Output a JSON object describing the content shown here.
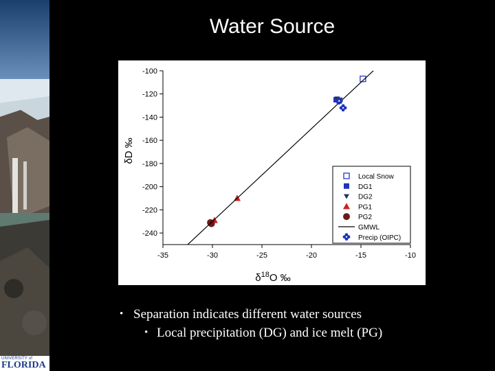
{
  "slide": {
    "title": "Water Source",
    "bullets": [
      "Separation indicates different water sources",
      "Local precipitation (DG) and ice melt (PG)"
    ],
    "bullet_symbol": "•"
  },
  "logo": {
    "top_text": "UNIVERSITY of",
    "main_text": "FLORIDA"
  },
  "chart_data": {
    "type": "scatter",
    "title": "",
    "xlabel": "δ18O ‰",
    "ylabel": "δD ‰",
    "xlim": [
      -35,
      -10
    ],
    "ylim": [
      -250,
      -100
    ],
    "xticks": [
      -35,
      -30,
      -25,
      -20,
      -15,
      -10
    ],
    "yticks": [
      -100,
      -120,
      -140,
      -160,
      -180,
      -200,
      -220,
      -240
    ],
    "grid": false,
    "legend_position": "lower-right",
    "series": [
      {
        "name": "Local Snow",
        "marker": "open-square",
        "color": "#3344cc",
        "points": [
          [
            -14.8,
            -107
          ]
        ]
      },
      {
        "name": "DG1",
        "marker": "filled-square",
        "color": "#2233bb",
        "points": [
          [
            -17.5,
            -125
          ],
          [
            -17.2,
            -126
          ]
        ]
      },
      {
        "name": "DG2",
        "marker": "triangle-down",
        "color": "#223366",
        "points": [
          [
            -17.4,
            -124
          ],
          [
            -17.1,
            -125
          ]
        ]
      },
      {
        "name": "PG1",
        "marker": "triangle-up",
        "color": "#cc2222",
        "points": [
          [
            -27.5,
            -210
          ],
          [
            -29.8,
            -229
          ]
        ]
      },
      {
        "name": "PG2",
        "marker": "circle",
        "color": "#6b1a1a",
        "points": [
          [
            -30.2,
            -231
          ],
          [
            -30.1,
            -232
          ]
        ]
      },
      {
        "name": "GMWL",
        "marker": "line",
        "color": "#000000",
        "line": {
          "slope": 8,
          "intercept": 10
        }
      },
      {
        "name": "Precip (OIPC)",
        "marker": "flower",
        "color": "#2233bb",
        "points": [
          [
            -16.8,
            -132
          ],
          [
            -17.2,
            -126
          ]
        ]
      }
    ]
  },
  "colors": {
    "background": "#000000",
    "text": "#ffffff",
    "chart_bg": "#ffffff"
  },
  "icons": {
    "side_photo": "glacier-photo",
    "logo": "university-of-florida-logo"
  }
}
